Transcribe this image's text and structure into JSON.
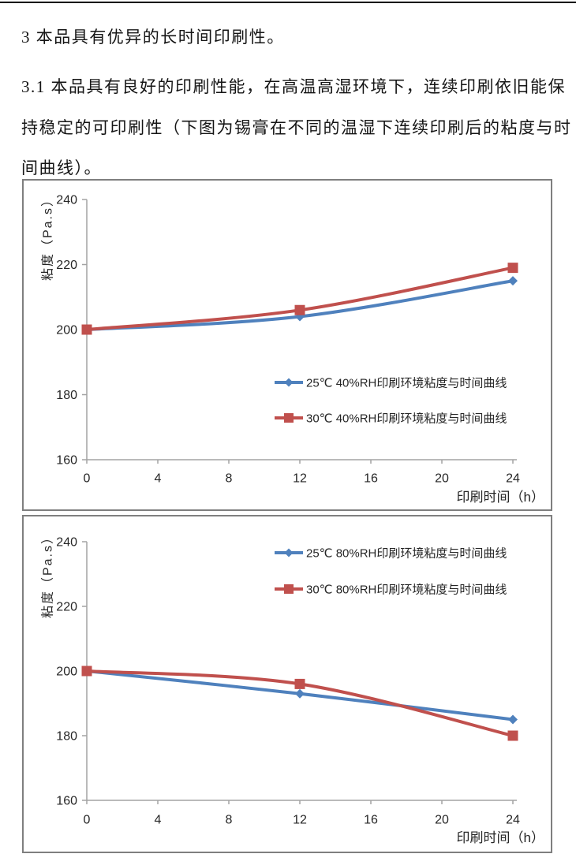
{
  "document": {
    "paragraphs": [
      "3 本品具有优异的长时间印刷性。",
      "3.1 本品具有良好的印刷性能，在高温高湿环境下，连续印刷依旧能保",
      "持稳定的可印刷性（下图为锡膏在不同的温湿下连续印刷后的粘度与时",
      "间曲线）。"
    ]
  },
  "colors": {
    "series_blue": "#4F81BD",
    "series_red": "#C0504D",
    "axis_line": "#A3A3A3",
    "tick_label": "#262626",
    "chart_border": "#7F7F7F",
    "page_top_rule": "#000000"
  },
  "chart_data": [
    {
      "type": "line",
      "x": [
        0,
        12,
        24
      ],
      "series": [
        {
          "name": "25℃ 40%RH印刷环境粘度与时间曲线",
          "values": [
            200,
            204,
            215
          ],
          "color": "#4F81BD",
          "marker": "diamond"
        },
        {
          "name": "30℃ 40%RH印刷环境粘度与时间曲线",
          "values": [
            200,
            206,
            219
          ],
          "color": "#C0504D",
          "marker": "square"
        }
      ],
      "xlabel": "印刷时间（h）",
      "ylabel": "粘度（Pa.s）",
      "xlim": [
        0,
        24
      ],
      "ylim": [
        160,
        240
      ],
      "xticks": [
        0,
        4,
        8,
        12,
        16,
        20,
        24
      ],
      "yticks": [
        160,
        180,
        200,
        220,
        240
      ],
      "grid": false,
      "smooth": true,
      "legend_position": "middle-right"
    },
    {
      "type": "line",
      "x": [
        0,
        12,
        24
      ],
      "series": [
        {
          "name": "25℃ 80%RH印刷环境粘度与时间曲线",
          "values": [
            200,
            193,
            185
          ],
          "color": "#4F81BD",
          "marker": "diamond"
        },
        {
          "name": "30℃ 80%RH印刷环境粘度与时间曲线",
          "values": [
            200,
            196,
            180
          ],
          "color": "#C0504D",
          "marker": "square"
        }
      ],
      "xlabel": "印刷时间（h）",
      "ylabel": "粘度（Pa.s）",
      "xlim": [
        0,
        24
      ],
      "ylim": [
        160,
        240
      ],
      "xticks": [
        0,
        4,
        8,
        12,
        16,
        20,
        24
      ],
      "yticks": [
        160,
        180,
        200,
        220,
        240
      ],
      "grid": false,
      "smooth": true,
      "legend_position": "top-right"
    }
  ]
}
